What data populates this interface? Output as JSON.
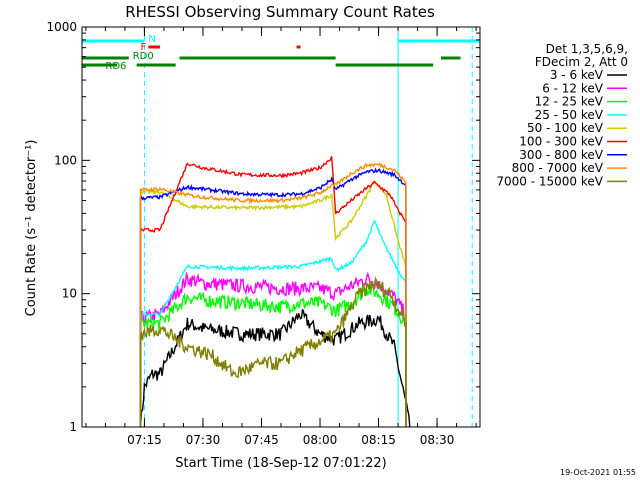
{
  "chart_data": {
    "type": "line",
    "title": "RHESSI Observing Summary Count Rates",
    "xlabel": "Start Time (18-Sep-12 07:01:22)",
    "ylabel": "Count Rate (s⁻¹ detector⁻¹)",
    "yscale": "log",
    "ylim": [
      1,
      1000
    ],
    "xlim": [
      "06:59",
      "08:41"
    ],
    "x_ticks": [
      "07:15",
      "07:30",
      "07:45",
      "08:00",
      "08:15",
      "08:30"
    ],
    "y_ticks": [
      "1",
      "10",
      "100",
      "1000"
    ],
    "legend_header": [
      "Det 1,3,5,6,9,",
      "FDecim 2, Att 0"
    ],
    "legend_position": "right",
    "timestamp": "19-Oct-2021 01:55",
    "series": [
      {
        "name": "3 - 6 keV",
        "color": "#000000",
        "points": [
          [
            "07:14",
            1.0
          ],
          [
            "07:15",
            2.0
          ],
          [
            "07:17",
            2.5
          ],
          [
            "07:19",
            2.5
          ],
          [
            "07:26",
            6.0
          ],
          [
            "07:30",
            5.5
          ],
          [
            "07:40",
            5.0
          ],
          [
            "07:50",
            5.0
          ],
          [
            "07:55",
            7.0
          ],
          [
            "08:00",
            5.0
          ],
          [
            "08:04",
            4.5
          ],
          [
            "08:10",
            6.0
          ],
          [
            "08:15",
            6.5
          ],
          [
            "08:19",
            4.0
          ],
          [
            "08:22",
            1.5
          ],
          [
            "08:23",
            1.0
          ]
        ]
      },
      {
        "name": "6 - 12 keV",
        "color": "#ff00ff",
        "points": [
          [
            "07:14",
            6.5
          ],
          [
            "07:19",
            7.0
          ],
          [
            "07:26",
            13.0
          ],
          [
            "07:30",
            12.0
          ],
          [
            "07:40",
            11.5
          ],
          [
            "07:50",
            11.0
          ],
          [
            "07:55",
            11.0
          ],
          [
            "08:00",
            11.0
          ],
          [
            "08:04",
            10.0
          ],
          [
            "08:08",
            11.5
          ],
          [
            "08:12",
            13.0
          ],
          [
            "08:15",
            12.0
          ],
          [
            "08:19",
            9.5
          ],
          [
            "08:22",
            7.0
          ]
        ]
      },
      {
        "name": "12 - 25 keV",
        "color": "#00ff00",
        "points": [
          [
            "07:14",
            6.0
          ],
          [
            "07:19",
            6.0
          ],
          [
            "07:26",
            9.5
          ],
          [
            "07:30",
            9.0
          ],
          [
            "07:40",
            8.5
          ],
          [
            "07:50",
            8.0
          ],
          [
            "07:55",
            8.5
          ],
          [
            "08:00",
            8.5
          ],
          [
            "08:04",
            7.5
          ],
          [
            "08:08",
            8.5
          ],
          [
            "08:12",
            11.0
          ],
          [
            "08:15",
            10.0
          ],
          [
            "08:19",
            8.0
          ],
          [
            "08:22",
            6.0
          ]
        ]
      },
      {
        "name": "25 - 50 keV",
        "color": "#00ffff",
        "points": [
          [
            "07:14",
            7.0
          ],
          [
            "07:19",
            7.0
          ],
          [
            "07:26",
            16.0
          ],
          [
            "07:40",
            15.5
          ],
          [
            "07:55",
            16.0
          ],
          [
            "08:00",
            17.5
          ],
          [
            "08:03",
            18.5
          ],
          [
            "08:04",
            15.0
          ],
          [
            "08:08",
            17.0
          ],
          [
            "08:12",
            25.0
          ],
          [
            "08:14",
            35.0
          ],
          [
            "08:16",
            25.0
          ],
          [
            "08:19",
            17.0
          ],
          [
            "08:22",
            12.0
          ]
        ]
      },
      {
        "name": "50 - 100 keV",
        "color": "#cccc00",
        "points": [
          [
            "07:14",
            58.0
          ],
          [
            "07:19",
            58.0
          ],
          [
            "07:26",
            45.0
          ],
          [
            "07:40",
            44.0
          ],
          [
            "07:55",
            45.0
          ],
          [
            "08:00",
            50.0
          ],
          [
            "08:03",
            55.0
          ],
          [
            "08:04",
            26.0
          ],
          [
            "08:08",
            35.0
          ],
          [
            "08:12",
            55.0
          ],
          [
            "08:14",
            70.0
          ],
          [
            "08:17",
            55.0
          ],
          [
            "08:20",
            25.0
          ],
          [
            "08:22",
            16.0
          ]
        ]
      },
      {
        "name": "100 - 300 keV",
        "color": "#ff0000",
        "points": [
          [
            "07:14",
            30.0
          ],
          [
            "07:19",
            30.0
          ],
          [
            "07:26",
            95.0
          ],
          [
            "07:30",
            88.0
          ],
          [
            "07:40",
            78.0
          ],
          [
            "07:50",
            77.0
          ],
          [
            "07:55",
            80.0
          ],
          [
            "08:00",
            88.0
          ],
          [
            "08:03",
            105.0
          ],
          [
            "08:04",
            40.0
          ],
          [
            "08:08",
            50.0
          ],
          [
            "08:12",
            62.0
          ],
          [
            "08:14",
            68.0
          ],
          [
            "08:18",
            55.0
          ],
          [
            "08:20",
            42.0
          ],
          [
            "08:22",
            35.0
          ]
        ]
      },
      {
        "name": "300 - 800 keV",
        "color": "#0000ff",
        "points": [
          [
            "07:14",
            52.0
          ],
          [
            "07:19",
            53.0
          ],
          [
            "07:26",
            63.0
          ],
          [
            "07:30",
            61.0
          ],
          [
            "07:40",
            56.0
          ],
          [
            "07:50",
            55.0
          ],
          [
            "07:55",
            56.0
          ],
          [
            "08:00",
            62.0
          ],
          [
            "08:03",
            72.0
          ],
          [
            "08:04",
            60.0
          ],
          [
            "08:08",
            72.0
          ],
          [
            "08:12",
            82.0
          ],
          [
            "08:15",
            84.0
          ],
          [
            "08:19",
            78.0
          ],
          [
            "08:22",
            65.0
          ]
        ]
      },
      {
        "name": "800 - 7000 keV",
        "color": "#ff8c00",
        "points": [
          [
            "07:14",
            60.0
          ],
          [
            "07:19",
            61.0
          ],
          [
            "07:26",
            55.0
          ],
          [
            "07:30",
            53.0
          ],
          [
            "07:40",
            50.0
          ],
          [
            "07:50",
            50.0
          ],
          [
            "07:55",
            52.0
          ],
          [
            "08:00",
            57.0
          ],
          [
            "08:03",
            65.0
          ],
          [
            "08:04",
            65.0
          ],
          [
            "08:08",
            80.0
          ],
          [
            "08:12",
            92.0
          ],
          [
            "08:15",
            93.0
          ],
          [
            "08:19",
            85.0
          ],
          [
            "08:22",
            68.0
          ]
        ]
      },
      {
        "name": "7000 - 15000 keV",
        "color": "#808000",
        "points": [
          [
            "07:14",
            5.0
          ],
          [
            "07:19",
            5.5
          ],
          [
            "07:26",
            4.0
          ],
          [
            "07:32",
            3.5
          ],
          [
            "07:38",
            2.5
          ],
          [
            "07:45",
            3.0
          ],
          [
            "07:50",
            3.0
          ],
          [
            "07:53",
            3.5
          ],
          [
            "08:04",
            5.0
          ],
          [
            "08:10",
            10.0
          ],
          [
            "08:14",
            12.0
          ],
          [
            "08:18",
            10.0
          ],
          [
            "08:22",
            6.0
          ]
        ]
      }
    ],
    "flags": {
      "N": {
        "label": "N",
        "color": "#00ffff",
        "intervals": [
          [
            "06:59",
            "07:15"
          ],
          [
            "08:20",
            "08:41"
          ]
        ]
      },
      "F": {
        "label": "F",
        "color": "#ff0000",
        "intervals": [
          [
            "07:16",
            "07:19"
          ],
          [
            "07:54",
            "07:55"
          ]
        ]
      },
      "RD0": {
        "label": "RD0",
        "color": "#008000",
        "intervals": [
          [
            "06:59",
            "07:11"
          ],
          [
            "07:24",
            "08:04"
          ],
          [
            "08:31",
            "08:36"
          ]
        ]
      },
      "RD6": {
        "label": "RD6",
        "color": "#008000",
        "intervals": [
          [
            "06:59",
            "07:08"
          ],
          [
            "07:13",
            "07:23"
          ],
          [
            "08:04",
            "08:29"
          ]
        ]
      }
    },
    "vertical_lines": [
      {
        "x": "07:15",
        "color": "#00ffff",
        "style": "dashed"
      },
      {
        "x": "08:20",
        "color": "#00ffff",
        "style": "solid"
      },
      {
        "x": "08:39",
        "color": "#00ffff",
        "style": "dashed"
      }
    ],
    "grid": false
  }
}
